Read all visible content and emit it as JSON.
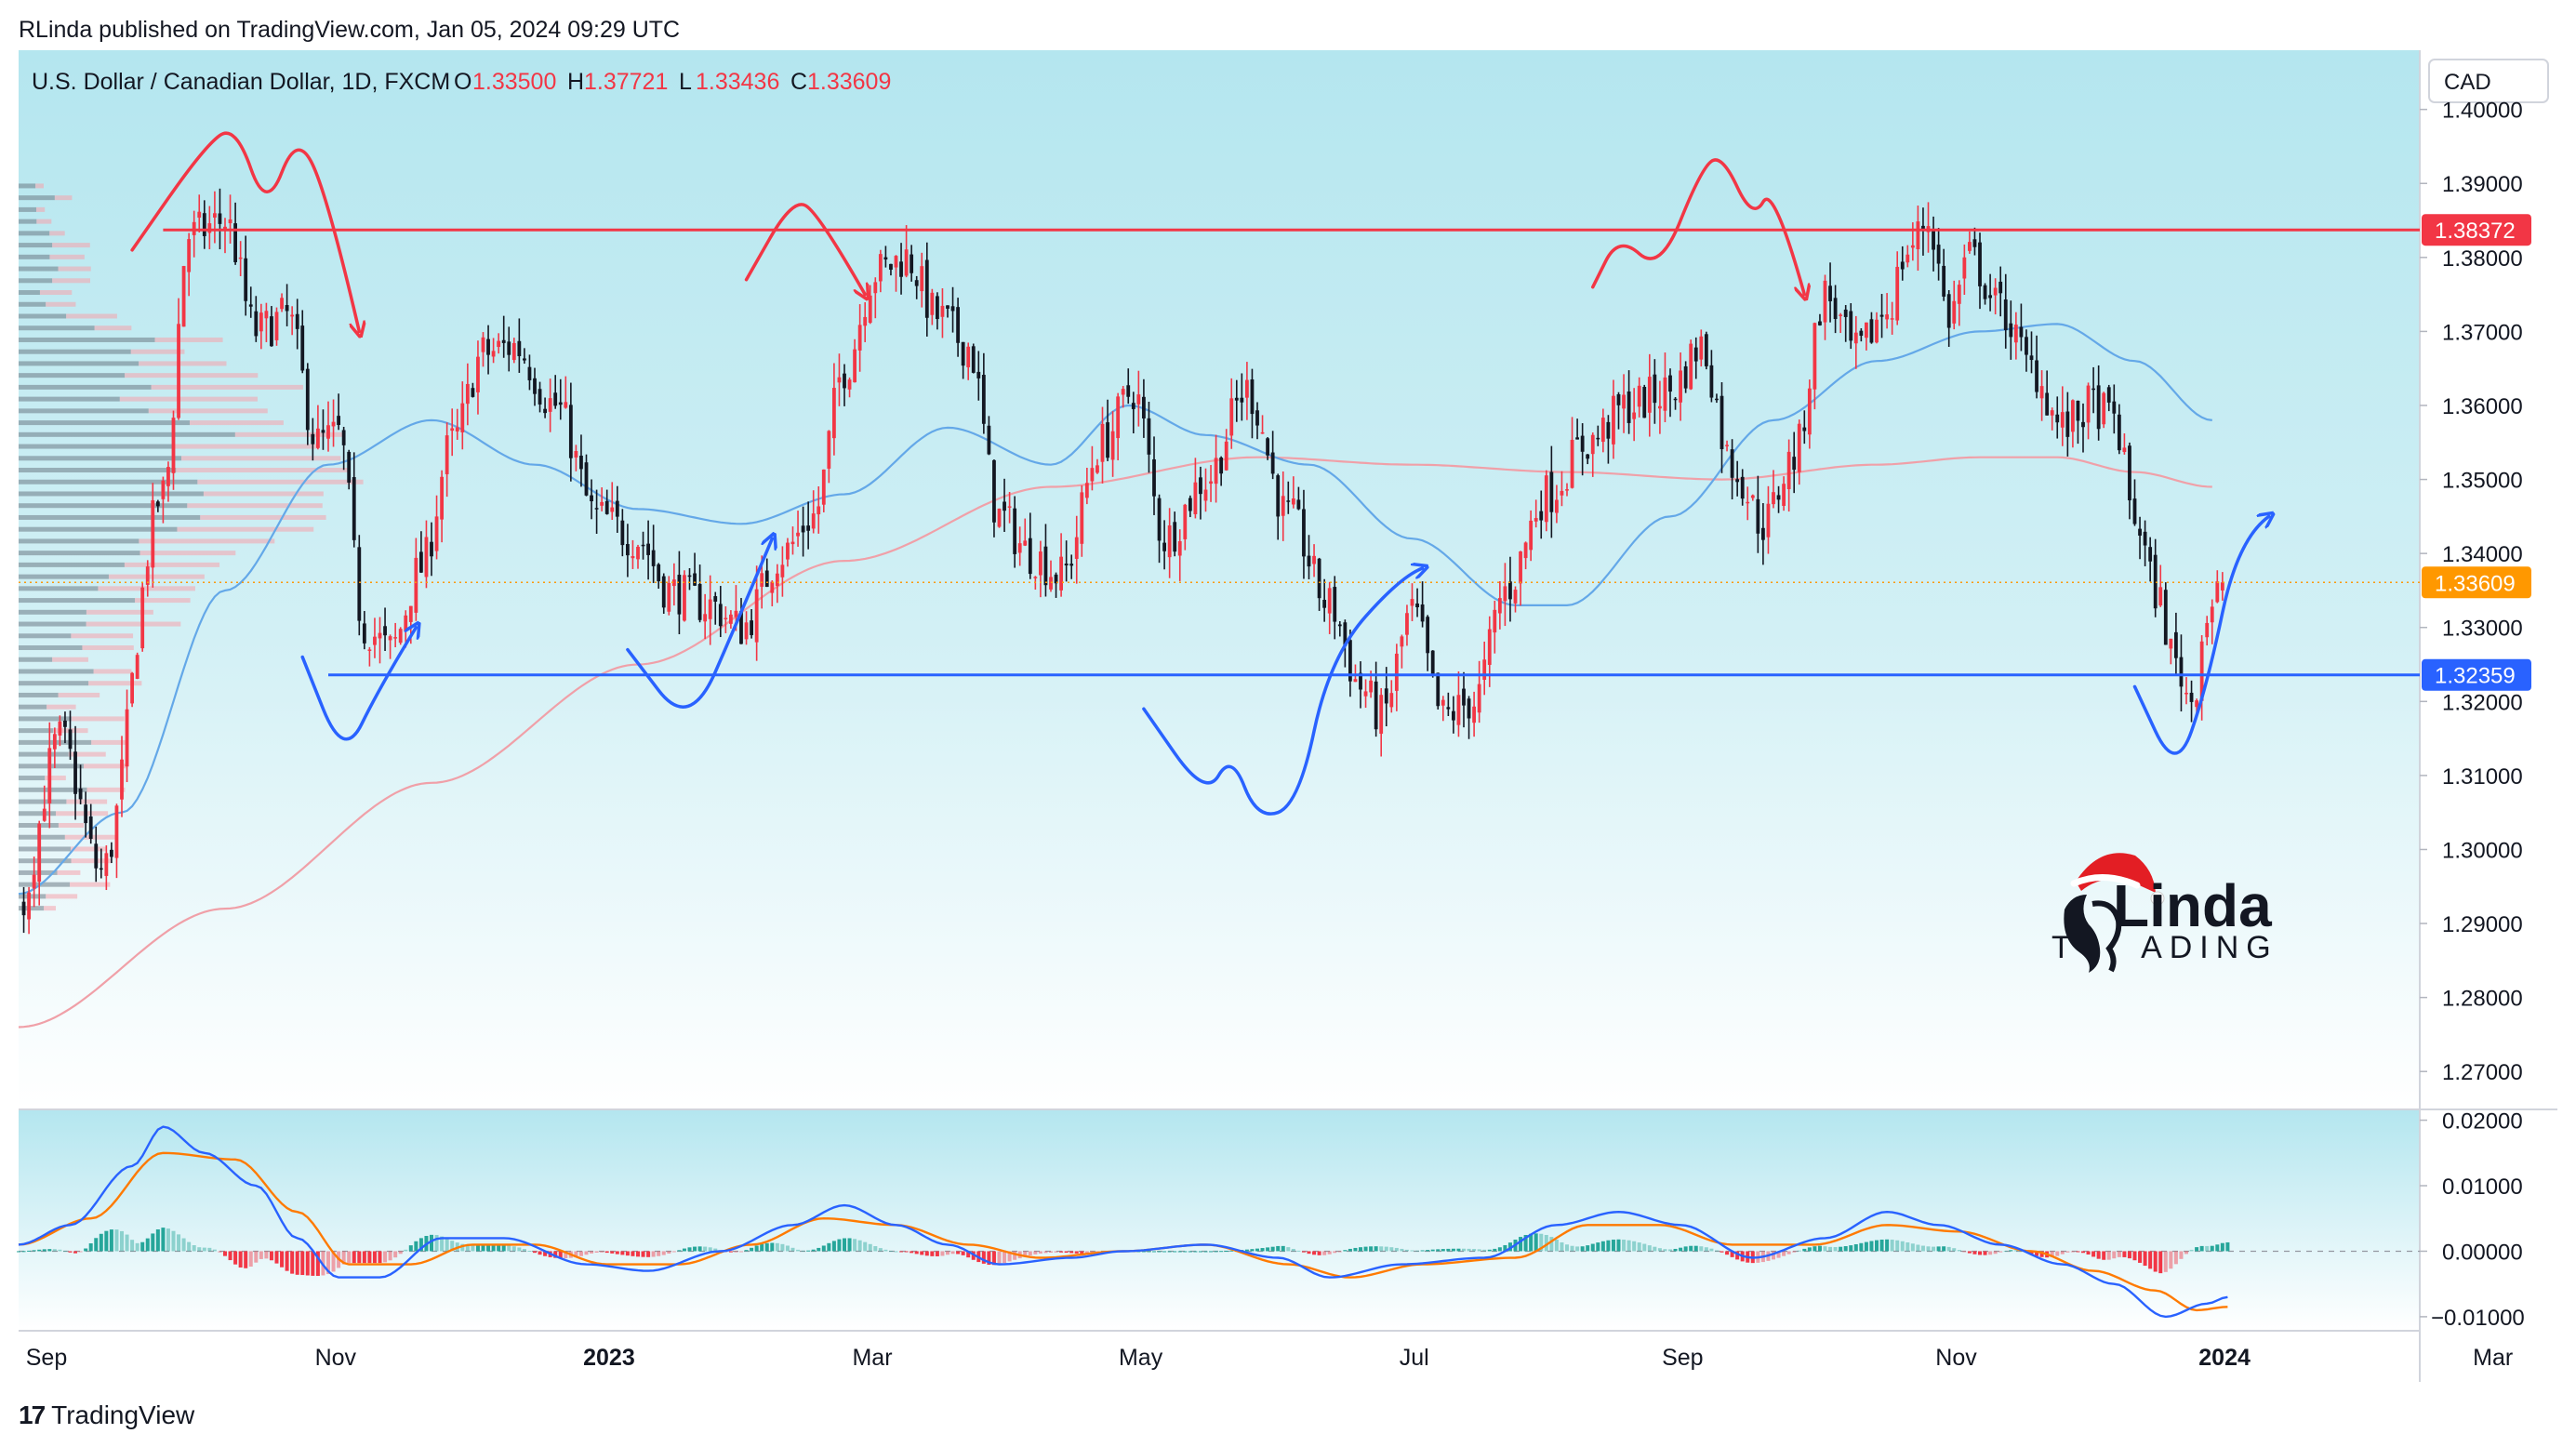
{
  "publisher_line": "RLinda published on TradingView.com, Jan 05, 2024 09:29 UTC",
  "footer_brand": "TradingView",
  "footer_icon": "tradingview-logo-icon",
  "colors": {
    "panel_bg": "#b8e8f0",
    "panel_bg_bottom": "#ffffff",
    "bull": "#f23645",
    "bear": "#131722",
    "resistance": "#f23645",
    "support": "#2962ff",
    "ema_short": "#64a8e8",
    "ema_long": "#f0a0a8",
    "macd": "#2962ff",
    "signal": "#ff7a00",
    "hist_pos": "#26a69a",
    "hist_neg": "#f23645",
    "price_label": "#ff9800",
    "annot_red": "#f23645",
    "annot_blue": "#2962ff"
  },
  "chart_data": [
    {
      "type": "candlestick",
      "title": "U.S. Dollar / Canadian Dollar, 1D, FXCM",
      "ohlc_header": {
        "o_label": "O",
        "o": "1.33500",
        "h_label": "H",
        "h": "1.37721",
        "l_label": "L",
        "l": "1.33436",
        "c_label": "C",
        "c": "1.33609"
      },
      "currency_badge": "CAD",
      "x_range": [
        0,
        485
      ],
      "ylim": [
        1.265,
        1.408
      ],
      "yticks": [
        "1.40000",
        "1.39000",
        "1.38000",
        "1.37000",
        "1.36000",
        "1.35000",
        "1.34000",
        "1.33000",
        "1.32000",
        "1.31000",
        "1.30000",
        "1.29000",
        "1.28000",
        "1.27000"
      ],
      "ytick_values": [
        1.4,
        1.39,
        1.38,
        1.37,
        1.36,
        1.35,
        1.34,
        1.33,
        1.32,
        1.31,
        1.3,
        1.29,
        1.28,
        1.27
      ],
      "xticks": [
        {
          "label": "Sep",
          "x": 0,
          "bold": false
        },
        {
          "label": "Nov",
          "x": 56,
          "bold": false
        },
        {
          "label": "2023",
          "x": 109,
          "bold": true
        },
        {
          "label": "Mar",
          "x": 160,
          "bold": false
        },
        {
          "label": "May",
          "x": 212,
          "bold": false
        },
        {
          "label": "Jul",
          "x": 265,
          "bold": false
        },
        {
          "label": "Sep",
          "x": 317,
          "bold": false
        },
        {
          "label": "Nov",
          "x": 370,
          "bold": false
        },
        {
          "label": "2024",
          "x": 422,
          "bold": true
        },
        {
          "label": "Mar",
          "x": 474,
          "bold": false
        }
      ],
      "anchors": [
        [
          0,
          1.292
        ],
        [
          8,
          1.315
        ],
        [
          16,
          1.297
        ],
        [
          28,
          1.348
        ],
        [
          33,
          1.383
        ],
        [
          40,
          1.385
        ],
        [
          46,
          1.37
        ],
        [
          52,
          1.372
        ],
        [
          58,
          1.355
        ],
        [
          62,
          1.356
        ],
        [
          67,
          1.33
        ],
        [
          72,
          1.327
        ],
        [
          78,
          1.338
        ],
        [
          84,
          1.355
        ],
        [
          90,
          1.367
        ],
        [
          96,
          1.368
        ],
        [
          104,
          1.36
        ],
        [
          112,
          1.345
        ],
        [
          120,
          1.342
        ],
        [
          126,
          1.335
        ],
        [
          134,
          1.333
        ],
        [
          140,
          1.33
        ],
        [
          148,
          1.34
        ],
        [
          154,
          1.345
        ],
        [
          160,
          1.365
        ],
        [
          166,
          1.378
        ],
        [
          172,
          1.38
        ],
        [
          178,
          1.372
        ],
        [
          184,
          1.368
        ],
        [
          190,
          1.345
        ],
        [
          196,
          1.34
        ],
        [
          202,
          1.337
        ],
        [
          210,
          1.355
        ],
        [
          216,
          1.362
        ],
        [
          222,
          1.342
        ],
        [
          230,
          1.35
        ],
        [
          238,
          1.362
        ],
        [
          246,
          1.345
        ],
        [
          254,
          1.333
        ],
        [
          260,
          1.322
        ],
        [
          264,
          1.318
        ],
        [
          270,
          1.332
        ],
        [
          276,
          1.318
        ],
        [
          282,
          1.32
        ],
        [
          288,
          1.335
        ],
        [
          296,
          1.348
        ],
        [
          304,
          1.355
        ],
        [
          312,
          1.36
        ],
        [
          320,
          1.362
        ],
        [
          326,
          1.368
        ],
        [
          332,
          1.352
        ],
        [
          338,
          1.344
        ],
        [
          344,
          1.353
        ],
        [
          350,
          1.375
        ],
        [
          356,
          1.367
        ],
        [
          362,
          1.373
        ],
        [
          366,
          1.381
        ],
        [
          370,
          1.385
        ],
        [
          374,
          1.372
        ],
        [
          378,
          1.38
        ],
        [
          384,
          1.373
        ],
        [
          390,
          1.365
        ],
        [
          396,
          1.357
        ],
        [
          402,
          1.36
        ],
        [
          406,
          1.358
        ],
        [
          410,
          1.345
        ],
        [
          414,
          1.335
        ],
        [
          418,
          1.325
        ],
        [
          421,
          1.32
        ],
        [
          424,
          1.332
        ],
        [
          427,
          1.336
        ]
      ],
      "ema_short": [
        [
          0,
          1.294
        ],
        [
          20,
          1.305
        ],
        [
          40,
          1.335
        ],
        [
          60,
          1.352
        ],
        [
          80,
          1.358
        ],
        [
          100,
          1.352
        ],
        [
          120,
          1.346
        ],
        [
          140,
          1.344
        ],
        [
          160,
          1.348
        ],
        [
          180,
          1.357
        ],
        [
          200,
          1.352
        ],
        [
          215,
          1.36
        ],
        [
          230,
          1.356
        ],
        [
          250,
          1.352
        ],
        [
          270,
          1.342
        ],
        [
          290,
          1.333
        ],
        [
          300,
          1.333
        ],
        [
          320,
          1.345
        ],
        [
          340,
          1.358
        ],
        [
          360,
          1.366
        ],
        [
          380,
          1.37
        ],
        [
          395,
          1.371
        ],
        [
          410,
          1.366
        ],
        [
          425,
          1.358
        ]
      ],
      "ema_long": [
        [
          0,
          1.276
        ],
        [
          40,
          1.292
        ],
        [
          80,
          1.309
        ],
        [
          120,
          1.325
        ],
        [
          160,
          1.339
        ],
        [
          200,
          1.349
        ],
        [
          240,
          1.353
        ],
        [
          270,
          1.352
        ],
        [
          300,
          1.351
        ],
        [
          330,
          1.35
        ],
        [
          360,
          1.352
        ],
        [
          380,
          1.353
        ],
        [
          395,
          1.353
        ],
        [
          410,
          1.351
        ],
        [
          425,
          1.349
        ]
      ],
      "horizontal_levels": [
        {
          "name": "resistance",
          "value": 1.38372,
          "label": "1.38372",
          "x_start": 28
        },
        {
          "name": "support",
          "value": 1.32359,
          "label": "1.32359",
          "x_start": 60
        },
        {
          "name": "current",
          "value": 1.33609,
          "label": "1.33609",
          "x_start": 0
        }
      ],
      "annotations": [
        {
          "color": "red",
          "type": "wave-down-arrow",
          "points": [
            [
              22,
              1.381
            ],
            [
              36,
              1.395
            ],
            [
              42,
              1.398
            ],
            [
              48,
              1.386
            ],
            [
              54,
              1.397
            ],
            [
              60,
              1.388
            ],
            [
              66,
              1.37
            ]
          ]
        },
        {
          "color": "blue",
          "type": "v-up-arrow",
          "points": [
            [
              55,
              1.326
            ],
            [
              63,
              1.312
            ],
            [
              70,
              1.322
            ],
            [
              77,
              1.33
            ]
          ]
        },
        {
          "color": "blue",
          "type": "v-up-arrow",
          "points": [
            [
              118,
              1.327
            ],
            [
              130,
              1.316
            ],
            [
              140,
              1.332
            ],
            [
              146,
              1.342
            ]
          ]
        },
        {
          "color": "red",
          "type": "peak-down-arrow",
          "points": [
            [
              141,
              1.377
            ],
            [
              150,
              1.388
            ],
            [
              155,
              1.386
            ],
            [
              164,
              1.375
            ]
          ]
        },
        {
          "color": "blue",
          "type": "w-up-arrow",
          "points": [
            [
              218,
              1.319
            ],
            [
              230,
              1.307
            ],
            [
              235,
              1.313
            ],
            [
              240,
              1.304
            ],
            [
              248,
              1.306
            ],
            [
              254,
              1.326
            ],
            [
              268,
              1.337
            ],
            [
              272,
              1.338
            ]
          ]
        },
        {
          "color": "red",
          "type": "double-peak-down-arrow",
          "points": [
            [
              305,
              1.376
            ],
            [
              310,
              1.383
            ],
            [
              318,
              1.378
            ],
            [
              326,
              1.392
            ],
            [
              330,
              1.394
            ],
            [
              336,
              1.385
            ],
            [
              340,
              1.39
            ],
            [
              346,
              1.375
            ]
          ]
        },
        {
          "color": "blue",
          "type": "v-up-arrow",
          "points": [
            [
              410,
              1.322
            ],
            [
              418,
              1.31
            ],
            [
              424,
              1.322
            ],
            [
              430,
              1.342
            ],
            [
              436,
              1.345
            ]
          ]
        }
      ],
      "volume_profile": "left-edge horizontal histogram (bull/bear volume at price)"
    },
    {
      "type": "macd",
      "ylim": [
        -0.012,
        0.0215
      ],
      "yticks": [
        "0.02000",
        "0.01000",
        "0.00000",
        "−0.01000"
      ],
      "ytick_values": [
        0.02,
        0.01,
        0.0,
        -0.01
      ],
      "macd_line": [
        [
          0,
          0.001
        ],
        [
          10,
          0.004
        ],
        [
          22,
          0.013
        ],
        [
          28,
          0.019
        ],
        [
          36,
          0.015
        ],
        [
          46,
          0.01
        ],
        [
          54,
          0.002
        ],
        [
          62,
          -0.004
        ],
        [
          70,
          -0.004
        ],
        [
          82,
          0.002
        ],
        [
          94,
          0.002
        ],
        [
          110,
          -0.002
        ],
        [
          122,
          -0.003
        ],
        [
          136,
          0.0
        ],
        [
          150,
          0.004
        ],
        [
          160,
          0.007
        ],
        [
          170,
          0.004
        ],
        [
          180,
          0.001
        ],
        [
          190,
          -0.002
        ],
        [
          204,
          -0.001
        ],
        [
          214,
          0.0
        ],
        [
          230,
          0.001
        ],
        [
          244,
          -0.001
        ],
        [
          254,
          -0.004
        ],
        [
          268,
          -0.002
        ],
        [
          284,
          -0.001
        ],
        [
          298,
          0.004
        ],
        [
          310,
          0.006
        ],
        [
          322,
          0.004
        ],
        [
          336,
          -0.001
        ],
        [
          350,
          0.002
        ],
        [
          362,
          0.006
        ],
        [
          372,
          0.004
        ],
        [
          384,
          0.001
        ],
        [
          396,
          -0.002
        ],
        [
          406,
          -0.005
        ],
        [
          416,
          -0.01
        ],
        [
          424,
          -0.008
        ],
        [
          428,
          -0.007
        ]
      ],
      "signal_line": [
        [
          0,
          0.001
        ],
        [
          14,
          0.005
        ],
        [
          28,
          0.015
        ],
        [
          42,
          0.014
        ],
        [
          54,
          0.006
        ],
        [
          64,
          -0.002
        ],
        [
          76,
          -0.002
        ],
        [
          88,
          0.001
        ],
        [
          100,
          0.001
        ],
        [
          114,
          -0.002
        ],
        [
          128,
          -0.002
        ],
        [
          142,
          0.001
        ],
        [
          156,
          0.005
        ],
        [
          170,
          0.004
        ],
        [
          184,
          0.001
        ],
        [
          198,
          -0.001
        ],
        [
          214,
          0.0
        ],
        [
          230,
          0.001
        ],
        [
          246,
          -0.002
        ],
        [
          258,
          -0.004
        ],
        [
          272,
          -0.002
        ],
        [
          290,
          -0.001
        ],
        [
          304,
          0.004
        ],
        [
          318,
          0.004
        ],
        [
          332,
          0.001
        ],
        [
          348,
          0.001
        ],
        [
          362,
          0.004
        ],
        [
          376,
          0.003
        ],
        [
          390,
          0.0
        ],
        [
          402,
          -0.003
        ],
        [
          414,
          -0.006
        ],
        [
          422,
          -0.009
        ],
        [
          428,
          -0.0085
        ]
      ]
    }
  ],
  "watermark": {
    "line1": "Linda",
    "line2": "T    ADING"
  }
}
